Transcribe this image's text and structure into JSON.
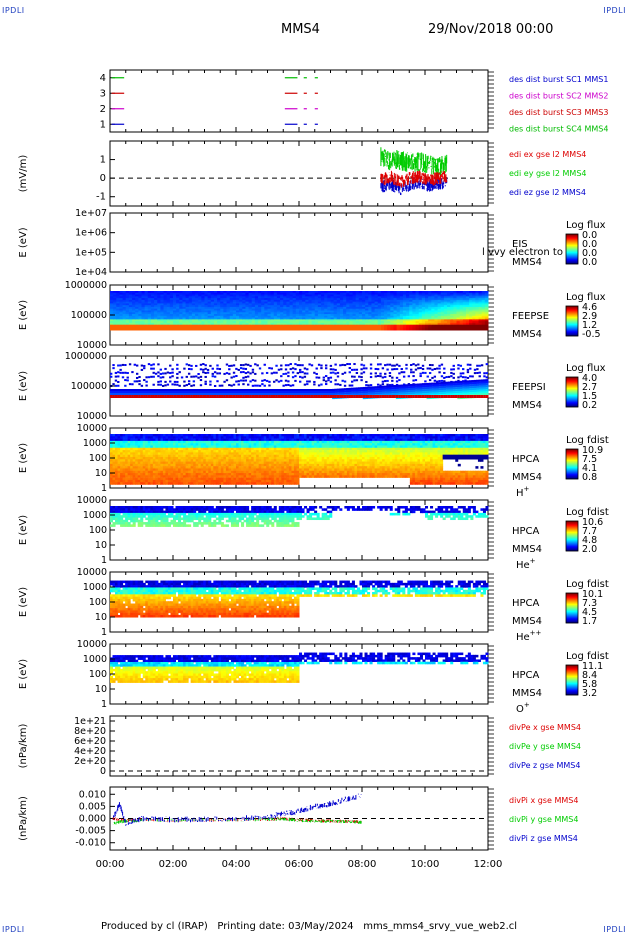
{
  "header": {
    "corner_tl": "IPDLI",
    "corner_tr": "IPDLI",
    "corner_bl": "IPDLI",
    "corner_br": "IPDLI",
    "spacecraft": "MMS4",
    "date": "29/Nov/2018 00:00"
  },
  "footer": {
    "produced_by": "Produced by cl (IRAP)",
    "printing_date": "Printing date: 03/May/2024",
    "script": "mms_mms4_srvy_vue_web2.cl"
  },
  "colors": {
    "mms1": "#0000cc",
    "mms2": "#cc00cc",
    "mms3": "#cc0000",
    "mms4": "#00bb00",
    "ex": "#dd0000",
    "ey": "#00cc00",
    "ez": "#0000cc",
    "axis": "#000000"
  },
  "chart_data": [
    {
      "type": "scatter",
      "id": "burst",
      "x_unit": "hours",
      "xlim": [
        0,
        12
      ],
      "ylim": [
        0.5,
        4.5
      ],
      "ytick_labels": [
        "1",
        "2",
        "3",
        "4"
      ],
      "ylabel": "",
      "legend": [
        "des dist burst SC1 MMS1",
        "des dist burst SC2 MMS2",
        "des dist burst SC3 MMS3",
        "des dist burst SC4 MMS4"
      ],
      "legend_colors": [
        "#0000cc",
        "#cc00cc",
        "#cc0000",
        "#00bb00"
      ],
      "series": [
        {
          "level": 4,
          "color": "#00bb00",
          "segments": [
            [
              0.05,
              0.45
            ],
            [
              5.55,
              5.95
            ],
            [
              6.15,
              6.25
            ],
            [
              6.5,
              6.6
            ]
          ]
        },
        {
          "level": 3,
          "color": "#cc0000",
          "segments": [
            [
              0.05,
              0.45
            ],
            [
              5.55,
              5.95
            ],
            [
              6.15,
              6.25
            ],
            [
              6.5,
              6.6
            ]
          ]
        },
        {
          "level": 2,
          "color": "#cc00cc",
          "segments": [
            [
              0.05,
              0.45
            ],
            [
              5.55,
              5.95
            ],
            [
              6.15,
              6.25
            ],
            [
              6.5,
              6.6
            ]
          ]
        },
        {
          "level": 1,
          "color": "#0000cc",
          "segments": [
            [
              0.05,
              0.45
            ],
            [
              5.55,
              5.95
            ],
            [
              6.15,
              6.25
            ],
            [
              6.5,
              6.6
            ]
          ]
        }
      ]
    },
    {
      "type": "line",
      "id": "edi",
      "ylabel": "(mV/m)",
      "xlim": [
        0,
        12
      ],
      "ylim": [
        -1.5,
        2.0
      ],
      "ytick_labels": [
        "-1",
        "0",
        "1"
      ],
      "legend": [
        "edi ex gse l2 MMS4",
        "edi ey gse l2 MMS4",
        "edi ez gse l2 MMS4"
      ],
      "legend_colors": [
        "#dd0000",
        "#00cc00",
        "#0000cc"
      ],
      "series": [
        {
          "name": "edi ex gse l2 MMS4",
          "x": [
            8.6,
            8.9,
            9.2,
            9.5,
            9.8,
            10.1,
            10.4,
            10.7
          ],
          "y": [
            -0.1,
            0.1,
            -0.2,
            0.0,
            0.1,
            -0.1,
            0.0,
            0.1
          ]
        },
        {
          "name": "edi ey gse l2 MMS4",
          "x": [
            8.6,
            8.9,
            9.2,
            9.5,
            9.8,
            10.1,
            10.4,
            10.7
          ],
          "y": [
            1.2,
            0.9,
            1.0,
            0.8,
            0.9,
            0.7,
            0.6,
            0.8
          ]
        },
        {
          "name": "edi ez gse l2 MMS4",
          "x": [
            8.6,
            8.9,
            9.2,
            9.5,
            9.8,
            10.1,
            10.4,
            10.7
          ],
          "y": [
            -0.5,
            -0.3,
            -0.6,
            -0.4,
            -0.2,
            -0.4,
            -0.3,
            -0.2
          ]
        }
      ],
      "reference_line": 0
    },
    {
      "type": "heatmap",
      "id": "eis",
      "ylabel": "E (eV)",
      "ylim_log10": [
        4,
        7
      ],
      "ytick_labels": [
        "1e+04",
        "1e+05",
        "1e+06",
        "1e+07"
      ],
      "right_labels": [
        "EIS",
        "MMS4"
      ],
      "overlay_text": "l vvy electron to",
      "colorbar_title": "Log flux",
      "colorbar_ticks": [
        "0.0",
        "0.0",
        "0.0",
        "0.0"
      ]
    },
    {
      "type": "heatmap",
      "id": "feepse",
      "ylabel": "E (eV)",
      "ylim_log10": [
        4,
        6
      ],
      "ytick_labels": [
        "10000",
        "100000",
        "1000000"
      ],
      "right_labels": [
        "FEEPSE",
        "MMS4"
      ],
      "colorbar_title": "Log flux",
      "colorbar_ticks": [
        "4.6",
        "2.9",
        "1.2",
        "-0.5"
      ]
    },
    {
      "type": "heatmap",
      "id": "feepsi",
      "ylabel": "E (eV)",
      "ylim_log10": [
        4,
        6
      ],
      "ytick_labels": [
        "10000",
        "100000",
        "1000000"
      ],
      "right_labels": [
        "FEEPSI",
        "MMS4"
      ],
      "colorbar_title": "Log flux",
      "colorbar_ticks": [
        "4.0",
        "2.7",
        "1.5",
        "0.2"
      ]
    },
    {
      "type": "heatmap",
      "id": "hpca_h",
      "ylabel": "E (eV)",
      "ylim_log10": [
        0,
        4
      ],
      "ytick_labels": [
        "1",
        "10",
        "100",
        "1000",
        "10000"
      ],
      "right_labels": [
        "HPCA",
        "MMS4"
      ],
      "species": "H",
      "species_charge": "+",
      "colorbar_title": "Log fdist",
      "colorbar_ticks": [
        "10.9",
        "7.5",
        "4.1",
        "0.8"
      ]
    },
    {
      "type": "heatmap",
      "id": "hpca_he1",
      "ylabel": "E (eV)",
      "ylim_log10": [
        0,
        4
      ],
      "ytick_labels": [
        "1",
        "10",
        "100",
        "1000",
        "10000"
      ],
      "right_labels": [
        "HPCA",
        "MMS4"
      ],
      "species": "He",
      "species_charge": "+",
      "colorbar_title": "Log fdist",
      "colorbar_ticks": [
        "10.6",
        "7.7",
        "4.8",
        "2.0"
      ]
    },
    {
      "type": "heatmap",
      "id": "hpca_he2",
      "ylabel": "E (eV)",
      "ylim_log10": [
        0,
        4
      ],
      "ytick_labels": [
        "1",
        "10",
        "100",
        "1000",
        "10000"
      ],
      "right_labels": [
        "HPCA",
        "MMS4"
      ],
      "species": "He",
      "species_charge": "++",
      "colorbar_title": "Log fdist",
      "colorbar_ticks": [
        "10.1",
        "7.3",
        "4.5",
        "1.7"
      ]
    },
    {
      "type": "heatmap",
      "id": "hpca_o",
      "ylabel": "E (eV)",
      "ylim_log10": [
        0,
        4
      ],
      "ytick_labels": [
        "1",
        "10",
        "100",
        "1000",
        "10000"
      ],
      "right_labels": [
        "HPCA",
        "MMS4"
      ],
      "species": "O",
      "species_charge": "+",
      "colorbar_title": "Log fdist",
      "colorbar_ticks": [
        "11.1",
        "8.4",
        "5.8",
        "3.2"
      ]
    },
    {
      "type": "line",
      "id": "divpe",
      "ylabel": "(nPa/km)",
      "xlim": [
        0,
        12
      ],
      "ylim": [
        -0.1,
        1.1
      ],
      "ytick_labels": [
        "0",
        "2e+20",
        "4e+20",
        "6e+20",
        "8e+20",
        "1e+21"
      ],
      "legend": [
        "divPe x gse MMS4",
        "divPe y gse MMS4",
        "divPe z gse MMS4"
      ],
      "legend_colors": [
        "#dd0000",
        "#00cc00",
        "#0000cc"
      ],
      "reference_line": 0,
      "series": []
    },
    {
      "type": "line",
      "id": "divpi",
      "ylabel": "(nPa/km)",
      "xlim": [
        0,
        12
      ],
      "ylim": [
        -0.013,
        0.013
      ],
      "ytick_labels": [
        "-0.010",
        "-0.005",
        "0.000",
        "0.005",
        "0.010"
      ],
      "legend": [
        "divPi x gse MMS4",
        "divPi y gse MMS4",
        "divPi z gse MMS4"
      ],
      "legend_colors": [
        "#dd0000",
        "#00cc00",
        "#0000cc"
      ],
      "reference_line": 0,
      "series": [
        {
          "name": "divPi x gse MMS4",
          "x": [
            0.1,
            0.5,
            1,
            2,
            3,
            4,
            5,
            5.5,
            6,
            6.5,
            7,
            7.5,
            8.0
          ],
          "y": [
            0.0,
            -0.001,
            -0.0005,
            -0.0008,
            -0.0006,
            -0.0005,
            -0.0003,
            0.0,
            -0.0006,
            -0.0008,
            -0.001,
            -0.0012,
            -0.0014
          ]
        },
        {
          "name": "divPi y gse MMS4",
          "x": [
            0.1,
            0.5,
            1,
            2,
            3,
            4,
            5,
            5.5,
            6,
            6.5,
            7,
            7.5,
            8.0
          ],
          "y": [
            -0.002,
            -0.001,
            -0.0008,
            -0.0007,
            -0.0006,
            -0.0006,
            -0.0004,
            -0.0002,
            -0.0008,
            -0.001,
            -0.0012,
            -0.0013,
            -0.0015
          ]
        },
        {
          "name": "divPi z gse MMS4",
          "x": [
            0.1,
            0.3,
            0.5,
            1,
            2,
            3,
            4,
            5,
            5.5,
            6,
            6.5,
            7,
            7.5,
            8.0
          ],
          "y": [
            0.0,
            0.006,
            -0.002,
            0.0,
            -0.0005,
            -0.0003,
            0.0,
            0.0005,
            0.002,
            0.003,
            0.005,
            0.006,
            0.008,
            0.0095
          ]
        }
      ]
    }
  ],
  "time_axis": {
    "ticks": [
      "00:00",
      "02:00",
      "04:00",
      "06:00",
      "08:00",
      "10:00",
      "12:00"
    ]
  }
}
